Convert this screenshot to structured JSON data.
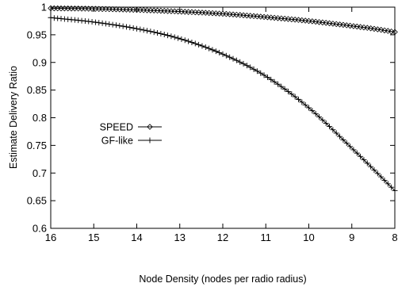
{
  "chart_data": {
    "type": "line",
    "title": "",
    "xlabel": "Node Density (nodes per radio radius)",
    "ylabel": "Estimate Delivery Ratio",
    "x_reversed": true,
    "xlim": [
      16,
      8
    ],
    "ylim": [
      0.6,
      1.0
    ],
    "xticks": [
      16,
      15,
      14,
      13,
      12,
      11,
      10,
      9,
      8
    ],
    "yticks": [
      0.6,
      0.65,
      0.7,
      0.75,
      0.8,
      0.85,
      0.9,
      0.95,
      1
    ],
    "ytick_labels": [
      "0.6",
      "0.65",
      "0.7",
      "0.75",
      "0.8",
      "0.85",
      "0.9",
      "0.95",
      "1"
    ],
    "grid": false,
    "legend_position": "center-left",
    "series": [
      {
        "name": "SPEED",
        "marker": "diamond",
        "x": [
          16,
          15,
          14,
          13,
          12,
          11,
          10,
          9,
          8.5,
          8
        ],
        "y": [
          0.998,
          0.997,
          0.995,
          0.992,
          0.988,
          0.982,
          0.975,
          0.966,
          0.961,
          0.955
        ]
      },
      {
        "name": "GF-like",
        "marker": "plus",
        "x": [
          16,
          15,
          14,
          13,
          12,
          11,
          10,
          9,
          8.5,
          8
        ],
        "y": [
          0.981,
          0.973,
          0.961,
          0.943,
          0.915,
          0.875,
          0.818,
          0.745,
          0.707,
          0.668
        ]
      }
    ]
  }
}
